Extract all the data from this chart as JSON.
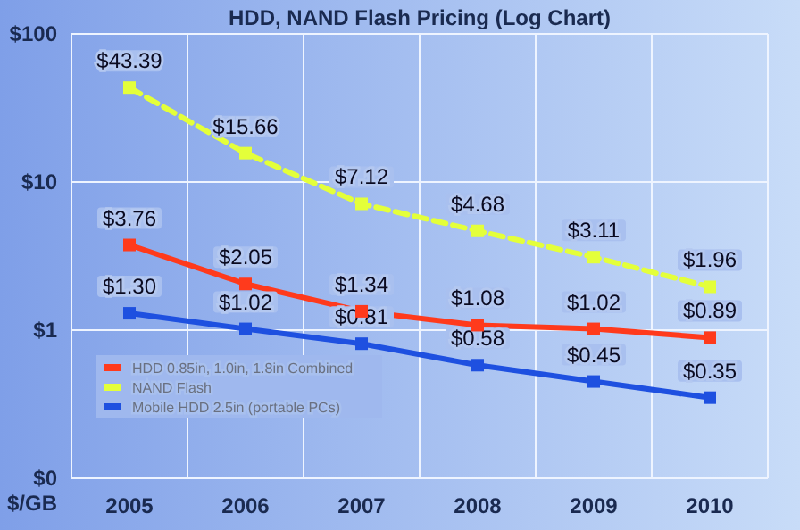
{
  "chart_data": {
    "type": "line",
    "title": "HDD, NAND Flash Pricing (Log Chart)",
    "ylabel": "$/GB",
    "categories": [
      "2005",
      "2006",
      "2007",
      "2008",
      "2009",
      "2010"
    ],
    "series": [
      {
        "name": "HDD 0.85in, 1.0in, 1.8in Combined",
        "color": "#ff3a1c",
        "values": [
          3.76,
          2.05,
          1.34,
          1.08,
          1.02,
          0.89
        ],
        "value_labels": [
          "$3.76",
          "$2.05",
          "$1.34",
          "$1.08",
          "$1.02",
          "$0.89"
        ]
      },
      {
        "name": "NAND Flash",
        "color": "#e4ff3a",
        "line_style": "dashed",
        "values": [
          43.39,
          15.66,
          7.12,
          4.68,
          3.11,
          1.96
        ],
        "value_labels": [
          "$43.39",
          "$15.66",
          "$7.12",
          "$4.68",
          "$3.11",
          "$1.96"
        ]
      },
      {
        "name": "Mobile HDD 2.5in (portable PCs)",
        "color": "#1e50e0",
        "values": [
          1.3,
          1.02,
          0.81,
          0.58,
          0.45,
          0.35
        ],
        "value_labels": [
          "$1.30",
          "$1.02",
          "$0.81",
          "$0.58",
          "$0.45",
          "$0.35"
        ]
      }
    ],
    "log": true,
    "ylim": [
      0.1,
      100
    ],
    "yticks": [
      {
        "value": 0.1,
        "label": "$0"
      },
      {
        "value": 1,
        "label": "$1"
      },
      {
        "value": 10,
        "label": "$10"
      },
      {
        "value": 100,
        "label": "$100"
      }
    ],
    "grid": true,
    "legend": "bottom left",
    "marker": "square",
    "line_style": "solid"
  }
}
